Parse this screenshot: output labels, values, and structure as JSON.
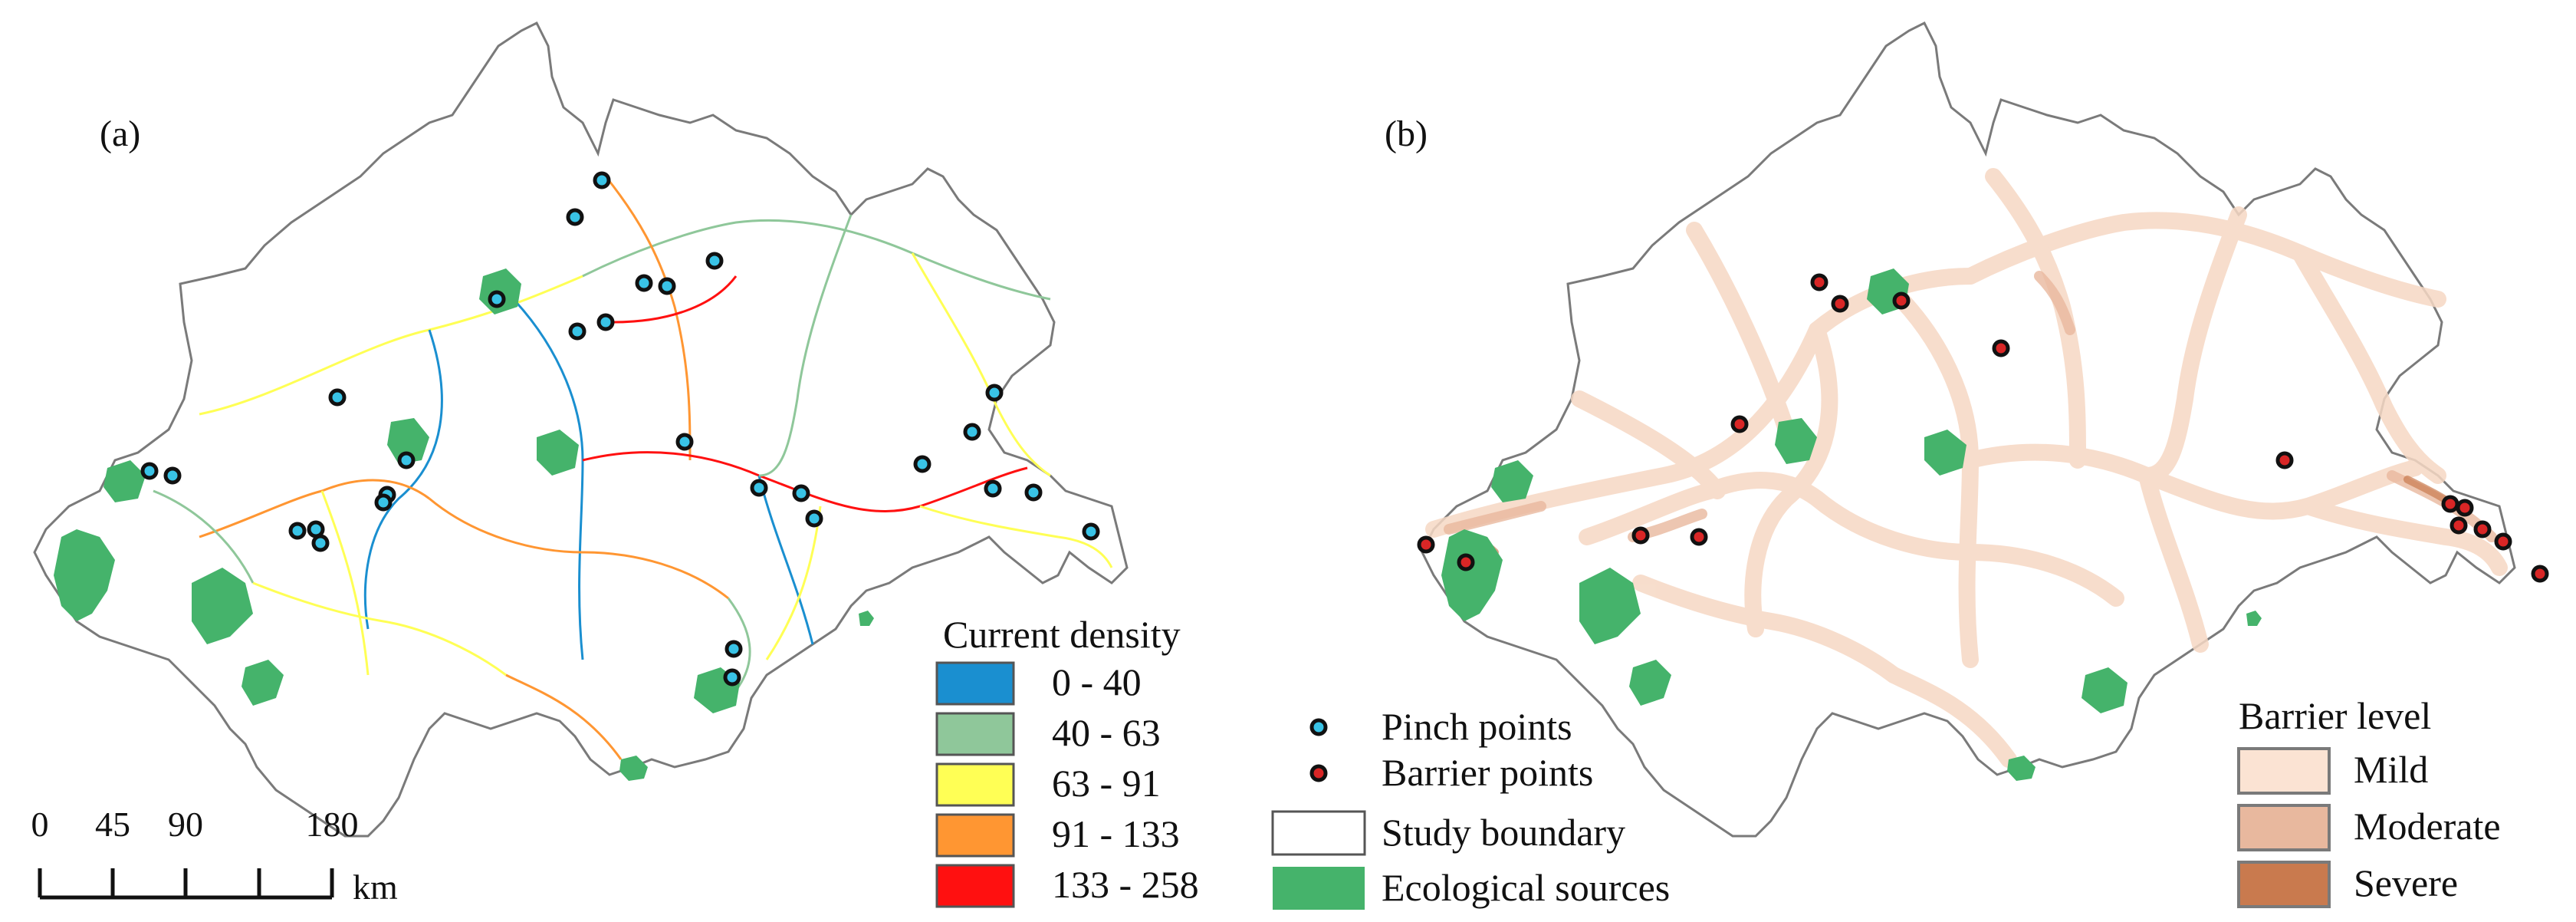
{
  "panels": [
    {
      "label": "(a)"
    },
    {
      "label": "(b)"
    }
  ],
  "current_density_legend": {
    "title": "Current density",
    "classes": [
      {
        "label": "0 - 40",
        "color": "#1a8fd0"
      },
      {
        "label": "40 - 63",
        "color": "#8fc79a"
      },
      {
        "label": "63 - 91",
        "color": "#ffff55"
      },
      {
        "label": "91 - 133",
        "color": "#ff9632"
      },
      {
        "label": "133 - 258",
        "color": "#ff1010"
      }
    ]
  },
  "symbol_legend": {
    "items": [
      {
        "label": "Pinch points",
        "icon": "pinch-point-icon",
        "color": "#39c3e6"
      },
      {
        "label": "Barrier points",
        "icon": "barrier-point-icon",
        "color": "#d92626"
      },
      {
        "label": "Study boundary",
        "icon": "boundary-swatch-icon",
        "color": "#ffffff"
      },
      {
        "label": "Ecological sources",
        "icon": "source-swatch-icon",
        "color": "#45b36b"
      }
    ]
  },
  "barrier_legend": {
    "title": "Barrier level",
    "classes": [
      {
        "label": "Mild",
        "color": "#fbe3d3"
      },
      {
        "label": "Moderate",
        "color": "#e8b89e"
      },
      {
        "label": "Severe",
        "color": "#c97a4e"
      }
    ]
  },
  "scale_bar": {
    "ticks": [
      "0",
      "45",
      "90",
      "180"
    ],
    "unit": "km"
  },
  "colors": {
    "boundary_stroke": "#7a7a7a",
    "boundary_fill": "#ffffff",
    "ecological_source": "#45b36b",
    "corridor_mild": "#f6d8c4"
  }
}
